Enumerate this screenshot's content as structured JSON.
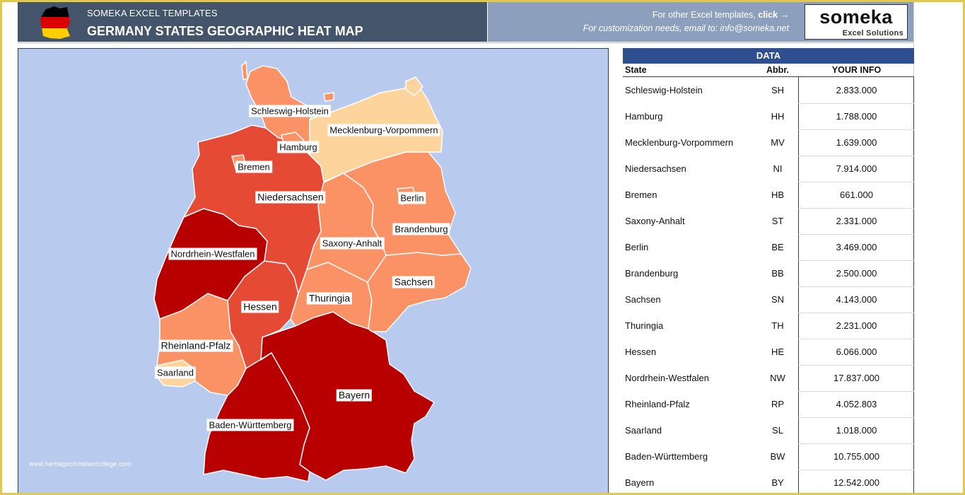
{
  "header": {
    "brand_small": "SOMEKA EXCEL TEMPLATES",
    "title": "GERMANY STATES GEOGRAPHIC HEAT MAP",
    "other_templates_text": "For other Excel templates, ",
    "other_templates_link": "click →",
    "customization_text": "For customization needs, email to: info@someka.net",
    "logo_word": "someka",
    "logo_sub": "Excel Solutions",
    "flag_colors": [
      "#000000",
      "#dd0000",
      "#ffce00"
    ]
  },
  "map": {
    "background": "#b8cbee",
    "watermark": "www.heritagechristiancollege.com",
    "labels": {
      "SH": "Schleswig-Holstein",
      "HH": "Hamburg",
      "MV": "Mecklenburg-Vorpommern",
      "HB": "Bremen",
      "NI": "Niedersachsen",
      "BE": "Berlin",
      "BB": "Brandenburg",
      "ST": "Saxony-Anhalt",
      "NW": "Nordrhein-Westfalen",
      "SN": "Sachsen",
      "TH": "Thuringia",
      "HE": "Hessen",
      "RP": "Rheinland-Pfalz",
      "SL": "Saarland",
      "BY": "Bayern",
      "BW": "Baden-Württemberg"
    },
    "colors": {
      "darkest": "#b80000",
      "dark": "#e54a35",
      "mid": "#fa9265",
      "light": "#fdd49c"
    }
  },
  "table": {
    "title": "DATA",
    "headers": {
      "state": "State",
      "abbr": "Abbr.",
      "info": "YOUR INFO"
    },
    "rows": [
      {
        "state": "Schleswig-Holstein",
        "abbr": "SH",
        "info": "2.833.000"
      },
      {
        "state": "Hamburg",
        "abbr": "HH",
        "info": "1.788.000"
      },
      {
        "state": "Mecklenburg-Vorpommern",
        "abbr": "MV",
        "info": "1.639.000"
      },
      {
        "state": "Niedersachsen",
        "abbr": "NI",
        "info": "7.914.000"
      },
      {
        "state": "Bremen",
        "abbr": "HB",
        "info": "661.000"
      },
      {
        "state": "Saxony-Anhalt",
        "abbr": "ST",
        "info": "2.331.000"
      },
      {
        "state": "Berlin",
        "abbr": "BE",
        "info": "3.469.000"
      },
      {
        "state": "Brandenburg",
        "abbr": "BB",
        "info": "2.500.000"
      },
      {
        "state": "Sachsen",
        "abbr": "SN",
        "info": "4.143.000"
      },
      {
        "state": "Thuringia",
        "abbr": "TH",
        "info": "2.231.000"
      },
      {
        "state": "Hessen",
        "abbr": "HE",
        "info": "6.066.000"
      },
      {
        "state": "Nordrhein-Westfalen",
        "abbr": "NW",
        "info": "17.837.000"
      },
      {
        "state": "Rheinland-Pfalz",
        "abbr": "RP",
        "info": "4.052.803"
      },
      {
        "state": "Saarland",
        "abbr": "SL",
        "info": "1.018.000"
      },
      {
        "state": "Baden-Württemberg",
        "abbr": "BW",
        "info": "10.755.000"
      },
      {
        "state": "Bayern",
        "abbr": "BY",
        "info": "12.542.000"
      }
    ]
  }
}
